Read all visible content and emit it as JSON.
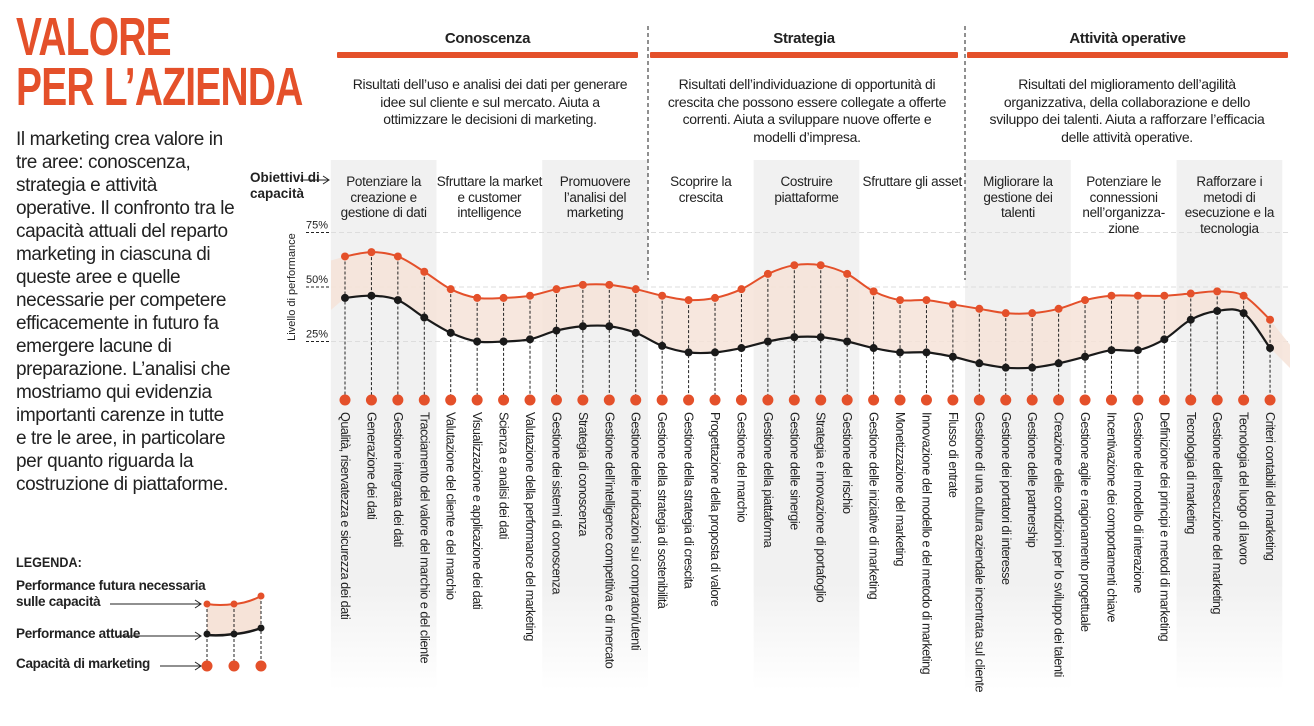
{
  "title_lines": [
    "VALORE",
    "PER L’AZIENDA"
  ],
  "intro": "Il marketing crea valore in tre aree: conoscenza, strategia e attività operative. Il confronto tra le capacità attuali del reparto marketing in ciascuna di queste aree e quelle necessarie per competere efficacemente in futuro fa emergere lacune di preparazione. L’analisi che mostriamo qui evidenzia importanti carenze in tutte e tre le aree, in particolare per quanto riguarda la costruzione di piattaforme.",
  "legend": {
    "title": "LEGENDA:",
    "future": "Performance futura necessaria sulle capacità",
    "current": "Performance attuale",
    "capability": "Capacità di marketing"
  },
  "sections": [
    {
      "title": "Conoscenza",
      "desc": "Risultati dell’uso e analisi dei dati per generare idee sul cliente e sul mercato. Aiuta a ottimizzare le decisioni di marketing."
    },
    {
      "title": "Strategia",
      "desc": "Risultati dell’individuazione di opportunità di crescita che possono essere collegate a offerte correnti. Aiuta a sviluppare nuove offerte e modelli d’impresa."
    },
    {
      "title": "Attività operative",
      "desc": "Risultati del miglioramento dell’agilità organizzativa, della collaborazione e dello sviluppo dei talenti. Aiuta a rafforzare l’efficacia delle attività operative."
    }
  ],
  "objectives_label": "Obiettivi di capacità",
  "colors": {
    "accent": "#e4502a",
    "current": "#1a1a1a",
    "band": "#f6e3d8",
    "column": "#f1f1f1"
  },
  "chart_data": {
    "type": "line",
    "ylabel": "Livello di performance",
    "ylim": [
      0,
      75
    ],
    "yticks": [
      "75%",
      "50%",
      "25%"
    ],
    "ytick_values": [
      75,
      50,
      25
    ],
    "groups": [
      "Potenziare la creazione e gestione di dati",
      "Sfruttare la market e customer intelligence",
      "Promuovere l’analisi del marketing",
      "Scoprire la crescita",
      "Costruire piattaforme",
      "Sfruttare gli asset",
      "Migliorare la gestione dei talenti",
      "Potenziare le connessioni nell’organizza-zione",
      "Rafforzare i metodi di esecuzione e la tecnologia"
    ],
    "categories": [
      "Qualità, riservatezza e sicurezza dei dati",
      "Generazione dei dati",
      "Gestione integrata dei dati",
      "Tracciamento del valore del marchio e del cliente",
      "Valutazione del cliente e del marchio",
      "Visualizzazione e applicazione dei dati",
      "Scienza e analisi dei dati",
      "Valutazione della performance del marketing",
      "Gestione dei sistemi di conoscenza",
      "Strategia di conoscenza",
      "Gestione dell’intelligence competitiva e di mercato",
      "Gestione delle indicazioni sui compratori/utenti",
      "Gestione della strategia di sostenibilità",
      "Gestione della strategia di crescita",
      "Progettazione della proposta di valore",
      "Gestione del marchio",
      "Gestione della piattaforma",
      "Gestione delle sinergie",
      "Strategia e innovazione di portafoglio",
      "Gestione del rischio",
      "Gestione delle iniziative di marketing",
      "Monetizzazione del marketing",
      "Innovazione del modello e del metodo di marketing",
      "Flusso di entrate",
      "Gestione di una cultura aziendale incentrata sul cliente",
      "Gestione dei portatori di interesse",
      "Gestione delle partnership",
      "Creazione delle condizioni per lo sviluppo dei talenti",
      "Gestione agile e ragionamento progettuale",
      "Incentivazione dei comportamenti chiave",
      "Gestione del modello di interazione",
      "Definizione dei principi e metodi di marketing",
      "Tecnologia di marketing",
      "Gestione dell’esecuzione del marketing",
      "Tecnologia del luogo di lavoro",
      "Criteri contabili del marketing"
    ],
    "series": [
      {
        "name": "Performance futura necessaria sulle capacità",
        "values": [
          64,
          66,
          64,
          57,
          49,
          45,
          45,
          46,
          49,
          51,
          51,
          49,
          46,
          44,
          45,
          49,
          56,
          60,
          60,
          56,
          48,
          44,
          44,
          42,
          40,
          38,
          38,
          40,
          44,
          46,
          46,
          46,
          47,
          48,
          46,
          35
        ]
      },
      {
        "name": "Performance attuale",
        "values": [
          45,
          46,
          44,
          36,
          29,
          25,
          25,
          26,
          30,
          32,
          32,
          29,
          23,
          20,
          20,
          22,
          25,
          27,
          27,
          25,
          22,
          20,
          20,
          18,
          15,
          13,
          13,
          15,
          18,
          21,
          21,
          26,
          35,
          39,
          38,
          22
        ]
      }
    ]
  }
}
